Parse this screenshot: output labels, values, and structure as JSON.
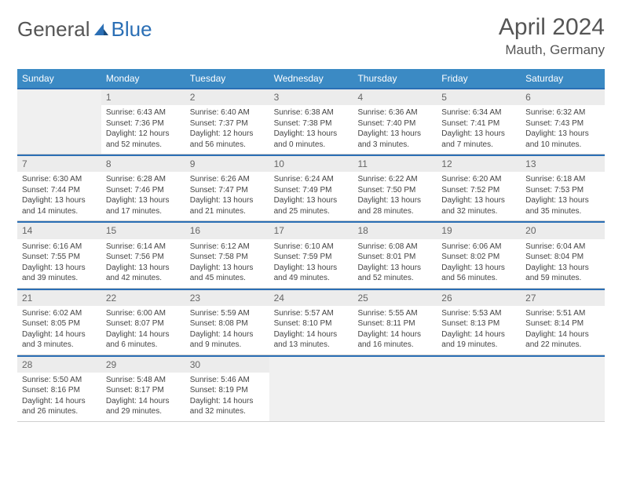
{
  "logo": {
    "text1": "General",
    "text2": "Blue"
  },
  "title": "April 2024",
  "location": "Mauth, Germany",
  "colors": {
    "header_bg": "#3b8ac4",
    "accent_line": "#2b6fb5",
    "daynum_bg": "#ececec",
    "empty_bg": "#f0f0f0",
    "text": "#444",
    "title_text": "#555"
  },
  "day_names": [
    "Sunday",
    "Monday",
    "Tuesday",
    "Wednesday",
    "Thursday",
    "Friday",
    "Saturday"
  ],
  "weeks": [
    [
      {
        "empty": true
      },
      {
        "day": "1",
        "sunrise": "Sunrise: 6:43 AM",
        "sunset": "Sunset: 7:36 PM",
        "daylight": "Daylight: 12 hours and 52 minutes."
      },
      {
        "day": "2",
        "sunrise": "Sunrise: 6:40 AM",
        "sunset": "Sunset: 7:37 PM",
        "daylight": "Daylight: 12 hours and 56 minutes."
      },
      {
        "day": "3",
        "sunrise": "Sunrise: 6:38 AM",
        "sunset": "Sunset: 7:38 PM",
        "daylight": "Daylight: 13 hours and 0 minutes."
      },
      {
        "day": "4",
        "sunrise": "Sunrise: 6:36 AM",
        "sunset": "Sunset: 7:40 PM",
        "daylight": "Daylight: 13 hours and 3 minutes."
      },
      {
        "day": "5",
        "sunrise": "Sunrise: 6:34 AM",
        "sunset": "Sunset: 7:41 PM",
        "daylight": "Daylight: 13 hours and 7 minutes."
      },
      {
        "day": "6",
        "sunrise": "Sunrise: 6:32 AM",
        "sunset": "Sunset: 7:43 PM",
        "daylight": "Daylight: 13 hours and 10 minutes."
      }
    ],
    [
      {
        "day": "7",
        "sunrise": "Sunrise: 6:30 AM",
        "sunset": "Sunset: 7:44 PM",
        "daylight": "Daylight: 13 hours and 14 minutes."
      },
      {
        "day": "8",
        "sunrise": "Sunrise: 6:28 AM",
        "sunset": "Sunset: 7:46 PM",
        "daylight": "Daylight: 13 hours and 17 minutes."
      },
      {
        "day": "9",
        "sunrise": "Sunrise: 6:26 AM",
        "sunset": "Sunset: 7:47 PM",
        "daylight": "Daylight: 13 hours and 21 minutes."
      },
      {
        "day": "10",
        "sunrise": "Sunrise: 6:24 AM",
        "sunset": "Sunset: 7:49 PM",
        "daylight": "Daylight: 13 hours and 25 minutes."
      },
      {
        "day": "11",
        "sunrise": "Sunrise: 6:22 AM",
        "sunset": "Sunset: 7:50 PM",
        "daylight": "Daylight: 13 hours and 28 minutes."
      },
      {
        "day": "12",
        "sunrise": "Sunrise: 6:20 AM",
        "sunset": "Sunset: 7:52 PM",
        "daylight": "Daylight: 13 hours and 32 minutes."
      },
      {
        "day": "13",
        "sunrise": "Sunrise: 6:18 AM",
        "sunset": "Sunset: 7:53 PM",
        "daylight": "Daylight: 13 hours and 35 minutes."
      }
    ],
    [
      {
        "day": "14",
        "sunrise": "Sunrise: 6:16 AM",
        "sunset": "Sunset: 7:55 PM",
        "daylight": "Daylight: 13 hours and 39 minutes."
      },
      {
        "day": "15",
        "sunrise": "Sunrise: 6:14 AM",
        "sunset": "Sunset: 7:56 PM",
        "daylight": "Daylight: 13 hours and 42 minutes."
      },
      {
        "day": "16",
        "sunrise": "Sunrise: 6:12 AM",
        "sunset": "Sunset: 7:58 PM",
        "daylight": "Daylight: 13 hours and 45 minutes."
      },
      {
        "day": "17",
        "sunrise": "Sunrise: 6:10 AM",
        "sunset": "Sunset: 7:59 PM",
        "daylight": "Daylight: 13 hours and 49 minutes."
      },
      {
        "day": "18",
        "sunrise": "Sunrise: 6:08 AM",
        "sunset": "Sunset: 8:01 PM",
        "daylight": "Daylight: 13 hours and 52 minutes."
      },
      {
        "day": "19",
        "sunrise": "Sunrise: 6:06 AM",
        "sunset": "Sunset: 8:02 PM",
        "daylight": "Daylight: 13 hours and 56 minutes."
      },
      {
        "day": "20",
        "sunrise": "Sunrise: 6:04 AM",
        "sunset": "Sunset: 8:04 PM",
        "daylight": "Daylight: 13 hours and 59 minutes."
      }
    ],
    [
      {
        "day": "21",
        "sunrise": "Sunrise: 6:02 AM",
        "sunset": "Sunset: 8:05 PM",
        "daylight": "Daylight: 14 hours and 3 minutes."
      },
      {
        "day": "22",
        "sunrise": "Sunrise: 6:00 AM",
        "sunset": "Sunset: 8:07 PM",
        "daylight": "Daylight: 14 hours and 6 minutes."
      },
      {
        "day": "23",
        "sunrise": "Sunrise: 5:59 AM",
        "sunset": "Sunset: 8:08 PM",
        "daylight": "Daylight: 14 hours and 9 minutes."
      },
      {
        "day": "24",
        "sunrise": "Sunrise: 5:57 AM",
        "sunset": "Sunset: 8:10 PM",
        "daylight": "Daylight: 14 hours and 13 minutes."
      },
      {
        "day": "25",
        "sunrise": "Sunrise: 5:55 AM",
        "sunset": "Sunset: 8:11 PM",
        "daylight": "Daylight: 14 hours and 16 minutes."
      },
      {
        "day": "26",
        "sunrise": "Sunrise: 5:53 AM",
        "sunset": "Sunset: 8:13 PM",
        "daylight": "Daylight: 14 hours and 19 minutes."
      },
      {
        "day": "27",
        "sunrise": "Sunrise: 5:51 AM",
        "sunset": "Sunset: 8:14 PM",
        "daylight": "Daylight: 14 hours and 22 minutes."
      }
    ],
    [
      {
        "day": "28",
        "sunrise": "Sunrise: 5:50 AM",
        "sunset": "Sunset: 8:16 PM",
        "daylight": "Daylight: 14 hours and 26 minutes."
      },
      {
        "day": "29",
        "sunrise": "Sunrise: 5:48 AM",
        "sunset": "Sunset: 8:17 PM",
        "daylight": "Daylight: 14 hours and 29 minutes."
      },
      {
        "day": "30",
        "sunrise": "Sunrise: 5:46 AM",
        "sunset": "Sunset: 8:19 PM",
        "daylight": "Daylight: 14 hours and 32 minutes."
      },
      {
        "empty": true
      },
      {
        "empty": true
      },
      {
        "empty": true
      },
      {
        "empty": true
      }
    ]
  ]
}
